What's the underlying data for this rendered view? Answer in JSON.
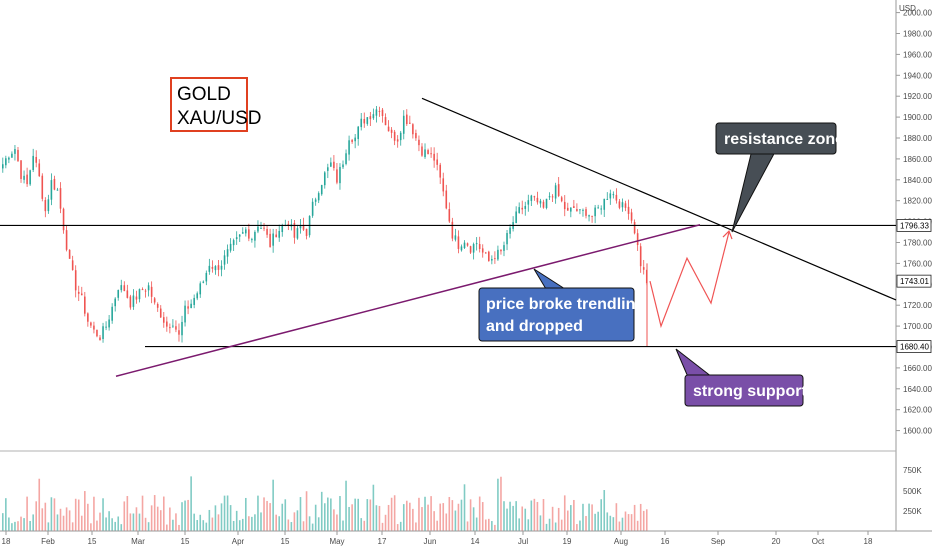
{
  "chart_data": {
    "type": "candlestick",
    "symbol": "GOLD XAU/USD",
    "title_line1": "GOLD",
    "title_line2": "XAU/USD",
    "currency": "USD",
    "y_ticks": [
      1600,
      1620,
      1640,
      1660,
      1680,
      1700,
      1720,
      1740,
      1760,
      1780,
      1800,
      1820,
      1840,
      1860,
      1880,
      1900,
      1920,
      1940,
      1960,
      1980,
      2000
    ],
    "x_ticks": [
      "18",
      "Feb",
      "15",
      "Mar",
      "15",
      "Apr",
      "15",
      "May",
      "17",
      "Jun",
      "14",
      "Jul",
      "19",
      "Aug",
      "16",
      "Sep",
      "20",
      "Oct",
      "18"
    ],
    "volume_ticks": [
      "750K",
      "500K",
      "250K"
    ],
    "price_tags": [
      {
        "value": "1796.33",
        "price": 1796.33
      },
      {
        "value": "1743.01",
        "price": 1743.01
      },
      {
        "value": "1680.40",
        "price": 1680.4
      }
    ],
    "close_path": [
      1855,
      1865,
      1870,
      1845,
      1835,
      1865,
      1842,
      1810,
      1838,
      1830,
      1795,
      1760,
      1738,
      1725,
      1705,
      1695,
      1690,
      1700,
      1718,
      1738,
      1735,
      1722,
      1728,
      1735,
      1738,
      1720,
      1712,
      1700,
      1705,
      1690,
      1715,
      1722,
      1732,
      1743,
      1760,
      1755,
      1760,
      1770,
      1778,
      1785,
      1792,
      1785,
      1798,
      1792,
      1778,
      1790,
      1795,
      1800,
      1785,
      1795,
      1790,
      1815,
      1832,
      1845,
      1855,
      1840,
      1858,
      1882,
      1880,
      1895,
      1900,
      1905,
      1910,
      1895,
      1882,
      1880,
      1900,
      1895,
      1880,
      1868,
      1865,
      1860,
      1840,
      1815,
      1788,
      1778,
      1783,
      1775,
      1780,
      1770,
      1762,
      1768,
      1770,
      1785,
      1800,
      1810,
      1815,
      1822,
      1818,
      1812,
      1825,
      1830,
      1818,
      1808,
      1813,
      1808,
      1810,
      1805,
      1812,
      1820,
      1830,
      1822,
      1814,
      1812,
      1792,
      1760,
      1743
    ],
    "projection": [
      {
        "day": 198,
        "price": 1743
      },
      {
        "day": 201,
        "price": 1700
      },
      {
        "day": 207,
        "price": 1765
      },
      {
        "day": 212,
        "price": 1722
      },
      {
        "day": 219,
        "price": 1790
      }
    ],
    "horizontal_levels": [
      1796.33,
      1680.4
    ],
    "trendlines": [
      {
        "name": "resistance-trendline",
        "from": {
          "day": 123,
          "price": 1918
        },
        "to": {
          "day": 245,
          "price": 1725
        }
      },
      {
        "name": "support-trendline",
        "from": {
          "day": 35,
          "price": 1652
        },
        "to": {
          "day": 212,
          "price": 1797
        }
      }
    ],
    "annotations": [
      {
        "text": "resistance zone",
        "color": "#474e55"
      },
      {
        "text_line1": "price broke trendline",
        "text_line2": "and dropped",
        "color": "#4870c0"
      },
      {
        "text": "strong support",
        "color": "#7a4fa8"
      }
    ],
    "colors": {
      "up": "#26a69a",
      "down": "#ef5350",
      "vol_up": "#80cbc4",
      "vol_down": "#f4a6a3",
      "trendline_support": "#7b1a6e",
      "projection": "#f05454",
      "label_border": "#e04020"
    },
    "ylim": [
      1585,
      2012
    ]
  }
}
